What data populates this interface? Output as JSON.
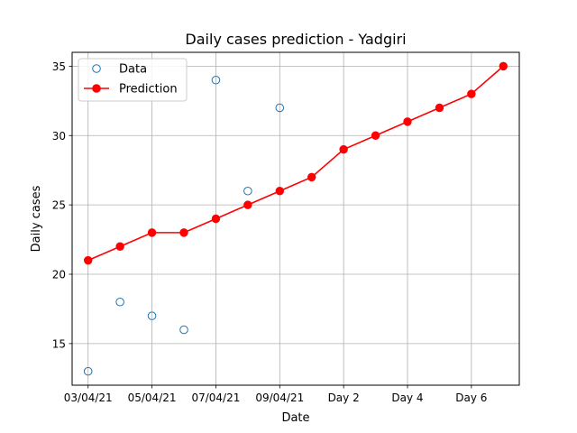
{
  "chart_data": {
    "type": "line",
    "title": "Daily cases prediction - Yadgiri",
    "xlabel": "Date",
    "ylabel": "Daily cases",
    "x_ticks": [
      {
        "x": 0,
        "label": "03/04/21"
      },
      {
        "x": 2,
        "label": "05/04/21"
      },
      {
        "x": 4,
        "label": "07/04/21"
      },
      {
        "x": 6,
        "label": "09/04/21"
      },
      {
        "x": 8,
        "label": "Day 2"
      },
      {
        "x": 10,
        "label": "Day 4"
      },
      {
        "x": 12,
        "label": "Day 6"
      }
    ],
    "y_ticks": [
      15,
      20,
      25,
      30,
      35
    ],
    "xlim": [
      -0.5,
      13.5
    ],
    "ylim": [
      12.0,
      36.0
    ],
    "grid": true,
    "legend_position": "top-left",
    "series": [
      {
        "name": "Data",
        "style": "open-circle",
        "color": "#1f77b4",
        "x": [
          0,
          1,
          2,
          3,
          4,
          5,
          6
        ],
        "y": [
          13,
          18,
          17,
          16,
          34,
          26,
          32
        ]
      },
      {
        "name": "Prediction",
        "style": "line-marker",
        "color": "#ff0000",
        "x": [
          0,
          1,
          2,
          3,
          4,
          5,
          6,
          7,
          8,
          9,
          10,
          11,
          12,
          13
        ],
        "y": [
          21,
          22,
          23,
          23,
          24,
          25,
          26,
          27,
          29,
          30,
          31,
          32,
          33,
          35
        ]
      }
    ]
  }
}
